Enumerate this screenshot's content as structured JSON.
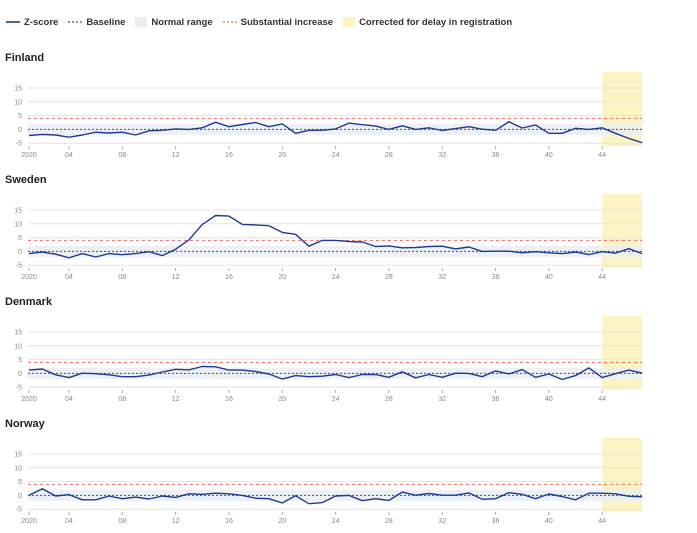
{
  "legend": {
    "zscore": "Z-score",
    "baseline": "Baseline",
    "normal_range": "Normal range",
    "substantial_increase": "Substantial increase",
    "corrected": "Corrected for delay in registration"
  },
  "colors": {
    "zscore": "#1f3a93",
    "baseline": "#555555",
    "normal_range": "#e8edf3",
    "substantial_increase": "#e46a6a",
    "corrected": "#fdf4c4"
  },
  "chart_data": [
    {
      "type": "line",
      "title": "Finland",
      "x_tick_labels": [
        "2020",
        "04",
        "08",
        "12",
        "16",
        "20",
        "24",
        "28",
        "32",
        "36",
        "40",
        "44"
      ],
      "y_ticks": [
        15,
        10,
        5,
        0,
        -5
      ],
      "ylim": [
        -6,
        15
      ],
      "baseline": 0,
      "normal_range": [
        -2,
        2
      ],
      "substantial_increase": 4,
      "corrected_from_week": 44,
      "series": [
        {
          "name": "Z-score",
          "x": [
            1,
            2,
            3,
            4,
            5,
            6,
            7,
            8,
            9,
            10,
            11,
            12,
            13,
            14,
            15,
            16,
            17,
            18,
            19,
            20,
            21,
            22,
            23,
            24,
            25,
            26,
            27,
            28,
            29,
            30,
            31,
            32,
            33,
            34,
            35,
            36,
            37,
            38,
            39,
            40,
            41,
            42,
            43,
            44,
            45,
            46,
            47
          ],
          "values": [
            -2.2,
            -1.8,
            -2.0,
            -2.8,
            -2.0,
            -1.0,
            -1.3,
            -1.0,
            -2.0,
            -0.5,
            -0.3,
            0.2,
            0.0,
            0.6,
            2.6,
            1.0,
            1.8,
            2.5,
            1.0,
            2.0,
            -1.4,
            -0.3,
            -0.3,
            0.2,
            2.3,
            1.7,
            1.2,
            0.0,
            1.3,
            0.0,
            0.6,
            -0.4,
            0.3,
            1.0,
            0.1,
            -0.3,
            2.8,
            0.5,
            1.6,
            -1.4,
            -1.4,
            0.4,
            0.0,
            0.6,
            -1.4,
            -3.3,
            -4.8
          ]
        }
      ]
    },
    {
      "type": "line",
      "title": "Sweden",
      "x_tick_labels": [
        "2020",
        "04",
        "08",
        "12",
        "16",
        "20",
        "24",
        "28",
        "32",
        "36",
        "40",
        "44"
      ],
      "y_ticks": [
        15,
        10,
        5,
        0,
        -5
      ],
      "ylim": [
        -6,
        15
      ],
      "baseline": 0,
      "normal_range": [
        -2,
        2
      ],
      "substantial_increase": 4,
      "corrected_from_week": 44,
      "series": [
        {
          "name": "Z-score",
          "x": [
            1,
            2,
            3,
            4,
            5,
            6,
            7,
            8,
            9,
            10,
            11,
            12,
            13,
            14,
            15,
            16,
            17,
            18,
            19,
            20,
            21,
            22,
            23,
            24,
            25,
            26,
            27,
            28,
            29,
            30,
            31,
            32,
            33,
            34,
            35,
            36,
            37,
            38,
            39,
            40,
            41,
            42,
            43,
            44,
            45,
            46,
            47
          ],
          "values": [
            -0.8,
            -0.2,
            -1.0,
            -2.3,
            -0.8,
            -2.0,
            -0.8,
            -1.2,
            -0.8,
            -0.1,
            -1.5,
            0.8,
            4.2,
            9.8,
            13.0,
            12.8,
            9.8,
            9.6,
            9.3,
            6.9,
            6.2,
            1.9,
            4.0,
            4.0,
            3.6,
            3.4,
            1.8,
            2.0,
            1.3,
            1.4,
            1.8,
            1.9,
            0.9,
            1.6,
            0.0,
            0.1,
            0.1,
            -0.5,
            -0.1,
            -0.5,
            -0.8,
            -0.2,
            -1.1,
            -0.1,
            -0.6,
            1.0,
            -0.8
          ]
        }
      ]
    },
    {
      "type": "line",
      "title": "Denmark",
      "x_tick_labels": [
        "2020",
        "04",
        "08",
        "12",
        "16",
        "20",
        "24",
        "28",
        "32",
        "36",
        "40",
        "44"
      ],
      "y_ticks": [
        15,
        10,
        5,
        0,
        -5
      ],
      "ylim": [
        -6,
        15
      ],
      "baseline": 0,
      "normal_range": [
        -2,
        2
      ],
      "substantial_increase": 4,
      "corrected_from_week": 44,
      "series": [
        {
          "name": "Z-score",
          "x": [
            1,
            2,
            3,
            4,
            5,
            6,
            7,
            8,
            9,
            10,
            11,
            12,
            13,
            14,
            15,
            16,
            17,
            18,
            19,
            20,
            21,
            22,
            23,
            24,
            25,
            26,
            27,
            28,
            29,
            30,
            31,
            32,
            33,
            34,
            35,
            36,
            37,
            38,
            39,
            40,
            41,
            42,
            43,
            44,
            45,
            46,
            47
          ],
          "values": [
            1.2,
            1.6,
            -0.5,
            -1.5,
            0.1,
            -0.1,
            -0.5,
            -1.2,
            -1.2,
            -0.6,
            0.5,
            1.5,
            1.3,
            2.5,
            2.4,
            1.2,
            1.2,
            0.7,
            -0.2,
            -2.0,
            -0.8,
            -1.2,
            -1.0,
            -0.4,
            -1.5,
            -0.4,
            -0.4,
            -1.4,
            0.6,
            -1.6,
            -0.4,
            -1.4,
            0.1,
            0.0,
            -1.2,
            0.9,
            -0.2,
            1.4,
            -1.4,
            -0.2,
            -2.2,
            -0.8,
            2.0,
            -1.5,
            -0.1,
            1.2,
            0.1
          ]
        }
      ]
    },
    {
      "type": "line",
      "title": "Norway",
      "x_tick_labels": [
        "2020",
        "04",
        "08",
        "12",
        "16",
        "20",
        "24",
        "28",
        "32",
        "36",
        "40",
        "44"
      ],
      "y_ticks": [
        15,
        10,
        5,
        0,
        -5
      ],
      "ylim": [
        -6,
        15
      ],
      "baseline": 0,
      "normal_range": [
        -2,
        2
      ],
      "substantial_increase": 4,
      "corrected_from_week": 44,
      "series": [
        {
          "name": "Z-score",
          "x": [
            1,
            2,
            3,
            4,
            5,
            6,
            7,
            8,
            9,
            10,
            11,
            12,
            13,
            14,
            15,
            16,
            17,
            18,
            19,
            20,
            21,
            22,
            23,
            24,
            25,
            26,
            27,
            28,
            29,
            30,
            31,
            32,
            33,
            34,
            35,
            36,
            37,
            38,
            39,
            40,
            41,
            42,
            43,
            44,
            45,
            46,
            47
          ],
          "values": [
            0.0,
            2.4,
            -0.2,
            0.3,
            -1.6,
            -1.6,
            -0.2,
            -1.2,
            -0.6,
            -1.3,
            -0.2,
            -0.7,
            0.6,
            0.4,
            0.8,
            0.6,
            0.0,
            -1.0,
            -1.2,
            -2.7,
            -0.1,
            -3.0,
            -2.6,
            -0.2,
            0.0,
            -1.9,
            -1.2,
            -1.8,
            1.2,
            0.1,
            0.7,
            0.1,
            0.1,
            0.9,
            -1.4,
            -1.2,
            1.0,
            0.4,
            -1.2,
            0.5,
            -0.4,
            -1.6,
            0.8,
            0.8,
            0.6,
            -0.3,
            -0.5
          ]
        }
      ]
    }
  ]
}
